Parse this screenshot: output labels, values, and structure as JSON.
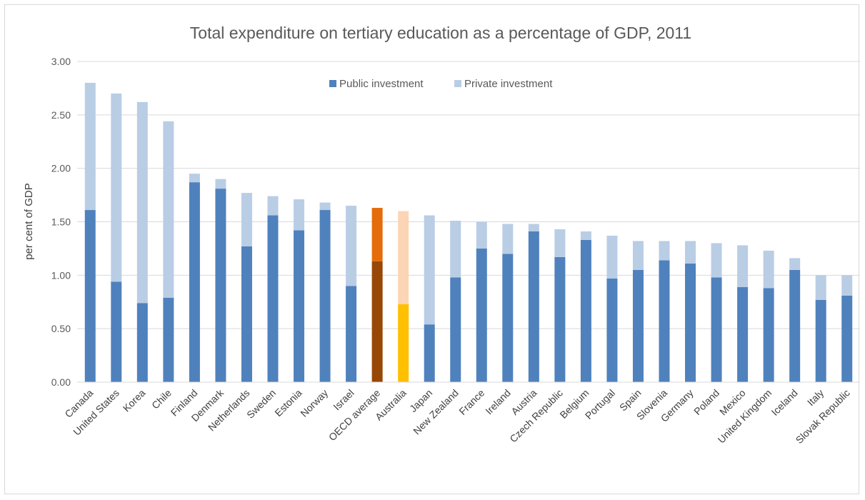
{
  "chart_data": {
    "type": "bar",
    "stacked": true,
    "title": "Total expenditure on tertiary education as a percentage of GDP, 2011",
    "xlabel": "",
    "ylabel": "per cent of GDP",
    "ylim": [
      0,
      3.0
    ],
    "yticks": [
      "0.00",
      "0.50",
      "1.00",
      "1.50",
      "2.00",
      "2.50",
      "3.00"
    ],
    "grid": true,
    "legend": "top-center",
    "categories": [
      "Canada",
      "United States",
      "Korea",
      "Chile",
      "Finland",
      "Denmark",
      "Netherlands",
      "Sweden",
      "Estonia",
      "Norway",
      "Israel",
      "OECD average",
      "Australia",
      "Japan",
      "New Zealand",
      "France",
      "Ireland",
      "Austria",
      "Czech Republic",
      "Belgium",
      "Portugal",
      "Spain",
      "Slovenia",
      "Germany",
      "Poland",
      "Mexico",
      "United Kingdom",
      "Iceland",
      "Italy",
      "Slovak Republic"
    ],
    "series": [
      {
        "name": "Public investment",
        "color": "#4f81bd",
        "values": [
          1.61,
          0.94,
          0.74,
          0.79,
          1.87,
          1.81,
          1.27,
          1.56,
          1.42,
          1.61,
          0.9,
          1.13,
          0.73,
          0.54,
          0.98,
          1.25,
          1.2,
          1.41,
          1.17,
          1.33,
          0.97,
          1.05,
          1.14,
          1.11,
          0.98,
          0.89,
          0.88,
          1.05,
          0.77,
          0.81
        ]
      },
      {
        "name": "Private investment",
        "color": "#b9cde5",
        "values": [
          1.19,
          1.76,
          1.88,
          1.65,
          0.08,
          0.09,
          0.5,
          0.18,
          0.29,
          0.07,
          0.75,
          0.5,
          0.87,
          1.02,
          0.53,
          0.25,
          0.28,
          0.07,
          0.26,
          0.08,
          0.4,
          0.27,
          0.18,
          0.21,
          0.32,
          0.39,
          0.35,
          0.11,
          0.23,
          0.19
        ]
      }
    ],
    "highlights": {
      "OECD average": {
        "public": "#974706",
        "private": "#e46c0a"
      },
      "Australia": {
        "public": "#ffc000",
        "private": "#fcd5b5"
      }
    }
  }
}
